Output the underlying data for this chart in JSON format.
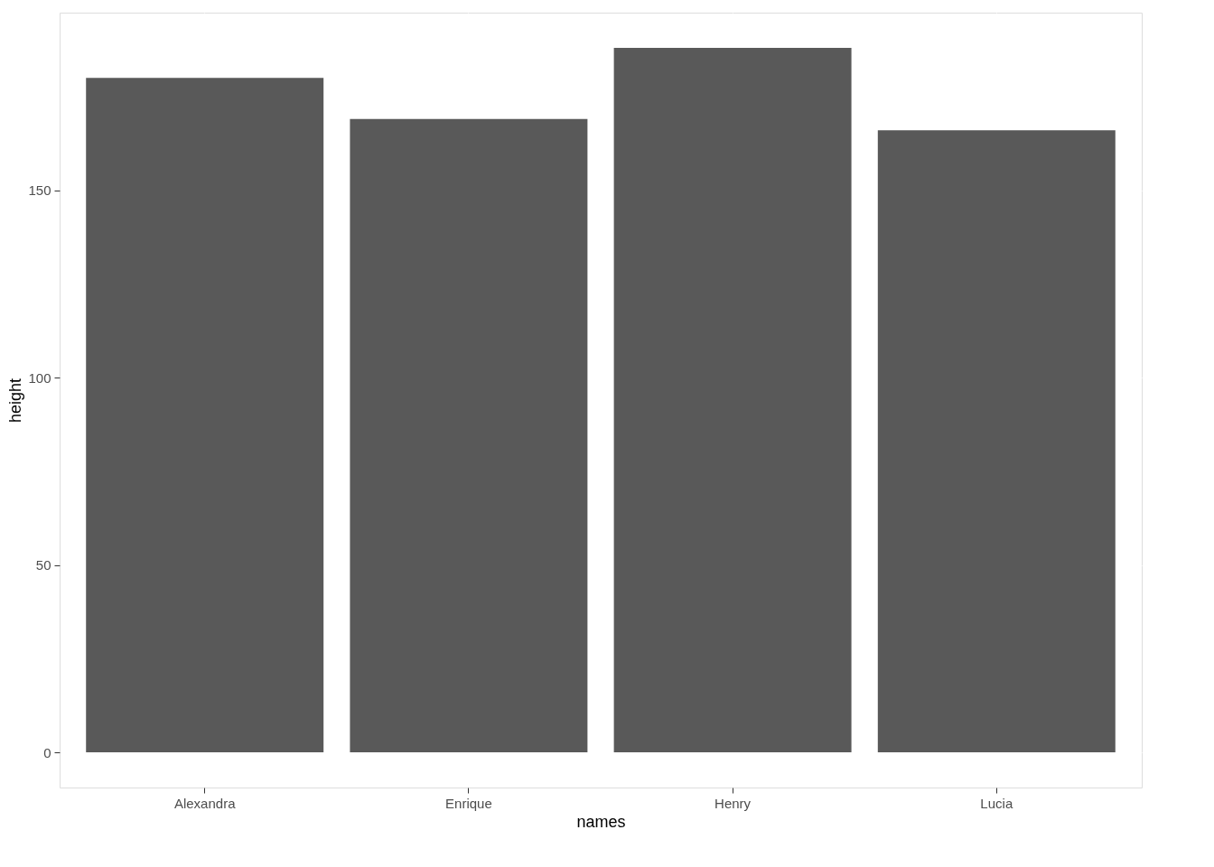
{
  "chart_data": {
    "type": "bar",
    "xlabel": "names",
    "ylabel": "height",
    "categories": [
      "Alexandra",
      "Enrique",
      "Henry",
      "Lucia"
    ],
    "values": [
      180,
      169,
      188,
      166
    ],
    "color": "#595959",
    "ylim": [
      -9.4,
      197.4
    ],
    "yticks": [
      0,
      50,
      100,
      150
    ],
    "grid": true
  }
}
